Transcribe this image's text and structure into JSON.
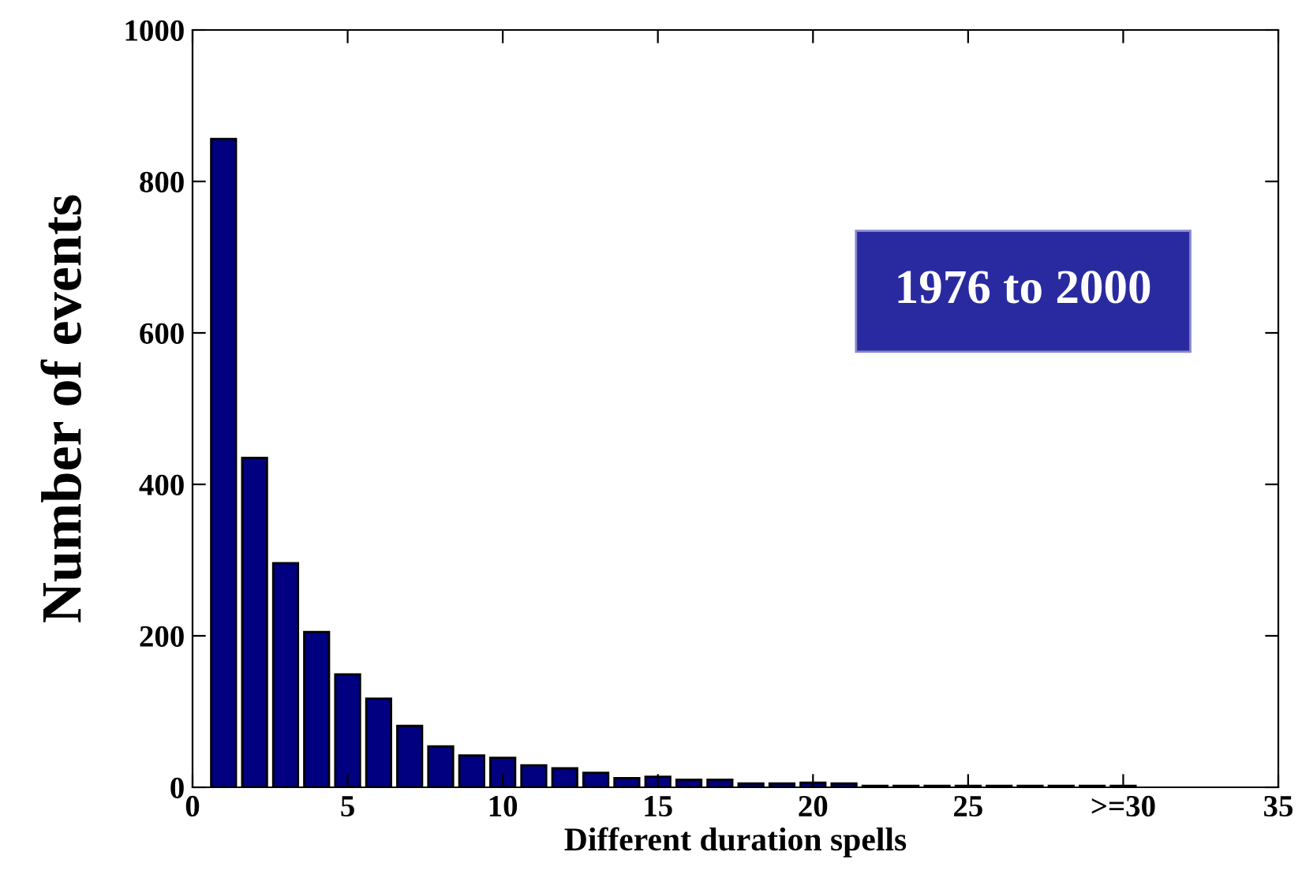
{
  "chart_data": {
    "type": "bar",
    "xlabel": "Different duration spells",
    "ylabel": "Number of events",
    "x": [
      1,
      2,
      3,
      4,
      5,
      6,
      7,
      8,
      9,
      10,
      11,
      12,
      13,
      14,
      15,
      16,
      17,
      18,
      19,
      20,
      21,
      22,
      23,
      24,
      25,
      26,
      27,
      28,
      29,
      30
    ],
    "values": [
      856,
      435,
      296,
      205,
      149,
      117,
      81,
      54,
      42,
      39,
      29,
      25,
      19,
      12,
      14,
      10,
      10,
      5,
      5,
      6,
      5,
      2,
      2,
      2,
      2,
      2,
      2,
      2,
      2,
      2
    ],
    "color": "#000080",
    "xlim": [
      0,
      35
    ],
    "xticks": [
      0,
      5,
      10,
      15,
      20,
      25,
      {
        "value": 30,
        "label": ">=30"
      },
      35
    ],
    "ylim": [
      0,
      1000
    ],
    "yticks": [
      0,
      200,
      400,
      600,
      800,
      1000
    ],
    "grid": false,
    "annotations": [
      "1976 to 2000"
    ]
  }
}
